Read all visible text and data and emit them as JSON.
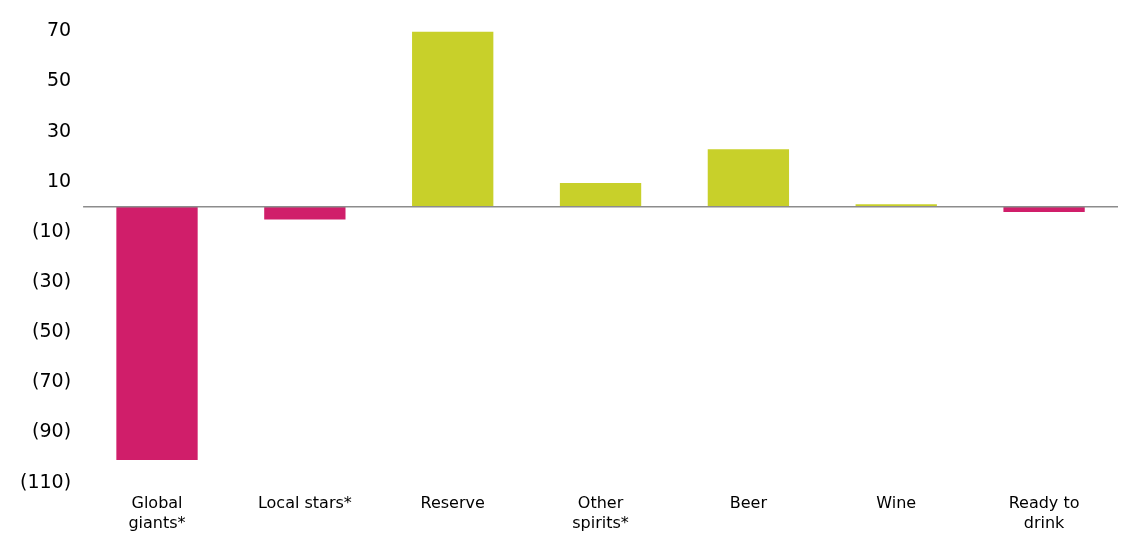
{
  "chart_data": {
    "type": "bar",
    "categories": [
      "Global giants*",
      "Local stars*",
      "Reserve",
      "Other spirits*",
      "Beer",
      "Wine",
      "Ready to drink"
    ],
    "values": [
      -101,
      -5,
      70,
      9.5,
      23,
      1,
      -2
    ],
    "colors": [
      "#d01e6a",
      "#d01e6a",
      "#c8d02a",
      "#c8d02a",
      "#c8d02a",
      "#c8d02a",
      "#d01e6a"
    ],
    "ylim": [
      -110,
      70
    ],
    "yticks": [
      70,
      50,
      30,
      10,
      {
        "value": -10,
        "label": "(10)"
      },
      {
        "value": -30,
        "label": "(30)"
      },
      {
        "value": -50,
        "label": "(50)"
      },
      {
        "value": -70,
        "label": "(70)"
      },
      {
        "value": -90,
        "label": "(90)"
      },
      {
        "value": -110,
        "label": "(110)"
      }
    ],
    "legend": false
  }
}
